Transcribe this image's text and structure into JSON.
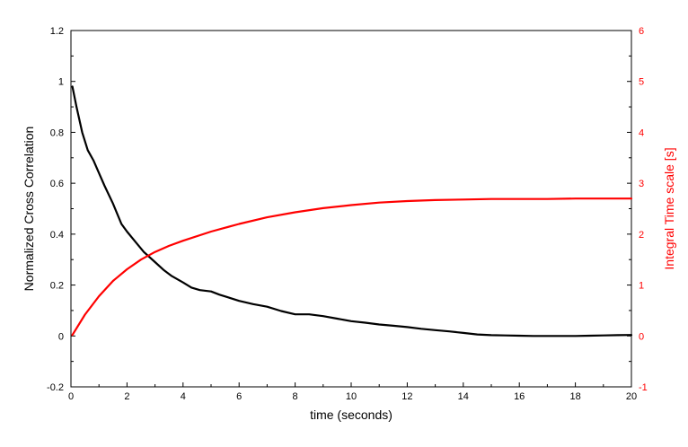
{
  "chart_data": {
    "type": "line",
    "title": "",
    "xlabel": "time (seconds)",
    "ylabel": "Normalized Cross Correlation",
    "y2label": "Integral Time scale [s]",
    "xlim": [
      0,
      20
    ],
    "ylim": [
      -0.2,
      1.2
    ],
    "y2lim": [
      -1,
      6
    ],
    "grid": false,
    "legend": "none",
    "x_ticks": [
      "0",
      "2",
      "4",
      "6",
      "8",
      "10",
      "12",
      "14",
      "16",
      "18",
      "20"
    ],
    "y_ticks": [
      "-0.2",
      "0",
      "0.2",
      "0.4",
      "0.6",
      "0.8",
      "1",
      "1.2"
    ],
    "y2_ticks": [
      "-1",
      "0",
      "1",
      "2",
      "3",
      "4",
      "5",
      "6"
    ],
    "colors": {
      "left": "#000000",
      "right": "#ff0000"
    },
    "series": [
      {
        "axis": "left",
        "color": "#000000",
        "x": [
          0.05,
          0.2,
          0.4,
          0.6,
          0.8,
          1.0,
          1.2,
          1.5,
          1.8,
          2.0,
          2.3,
          2.6,
          3.0,
          3.3,
          3.6,
          4.0,
          4.3,
          4.6,
          5.0,
          5.3,
          5.6,
          6.0,
          6.5,
          7.0,
          7.5,
          8.0,
          8.5,
          9.0,
          9.5,
          10.0,
          10.5,
          11.0,
          11.5,
          12.0,
          12.5,
          13.0,
          13.5,
          14.0,
          14.5,
          15.0,
          15.5,
          16.0,
          16.5,
          17.0,
          17.5,
          18.0,
          18.5,
          19.0,
          19.5,
          20.0
        ],
        "values": [
          0.98,
          0.9,
          0.8,
          0.73,
          0.69,
          0.64,
          0.59,
          0.52,
          0.44,
          0.41,
          0.37,
          0.33,
          0.29,
          0.26,
          0.235,
          0.21,
          0.19,
          0.18,
          0.175,
          0.162,
          0.152,
          0.138,
          0.125,
          0.115,
          0.098,
          0.085,
          0.085,
          0.078,
          0.068,
          0.058,
          0.052,
          0.045,
          0.04,
          0.035,
          0.028,
          0.023,
          0.018,
          0.012,
          0.006,
          0.003,
          0.002,
          0.001,
          0.0,
          0.0,
          0.0,
          0.0,
          0.001,
          0.002,
          0.003,
          0.004
        ]
      },
      {
        "axis": "right",
        "color": "#ff0000",
        "x": [
          0.05,
          0.5,
          1.0,
          1.5,
          2.0,
          2.5,
          3.0,
          3.5,
          4.0,
          5.0,
          6.0,
          7.0,
          8.0,
          9.0,
          10.0,
          11.0,
          12.0,
          13.0,
          14.0,
          15.0,
          16.0,
          17.0,
          18.0,
          19.0,
          20.0
        ],
        "values": [
          0.02,
          0.42,
          0.78,
          1.08,
          1.31,
          1.5,
          1.65,
          1.77,
          1.87,
          2.05,
          2.2,
          2.33,
          2.43,
          2.51,
          2.57,
          2.62,
          2.65,
          2.67,
          2.68,
          2.69,
          2.69,
          2.69,
          2.7,
          2.7,
          2.7
        ]
      }
    ]
  }
}
